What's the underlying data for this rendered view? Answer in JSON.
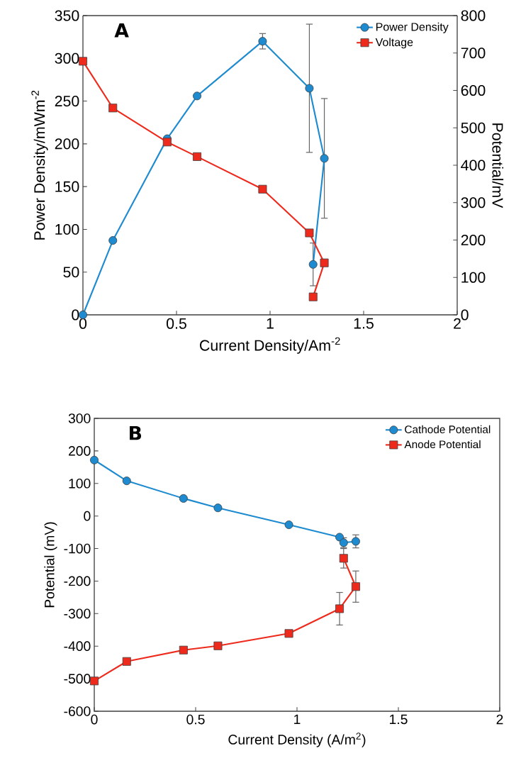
{
  "chart_data": [
    {
      "type": "line",
      "annotations": [
        "A"
      ],
      "xlabel": "Current Density/Am$^{-2}$",
      "ylabel": "Power Density/mWm$^{-2}$",
      "y2label": "Potential/mV",
      "xlim": [
        0,
        2
      ],
      "xticks": [
        0,
        0.5,
        1,
        1.5,
        2
      ],
      "ylim": [
        0,
        350
      ],
      "yticks": [
        0,
        50,
        100,
        150,
        200,
        250,
        300,
        350
      ],
      "y2lim": [
        0,
        800
      ],
      "y2ticks": [
        0,
        100,
        200,
        300,
        400,
        500,
        600,
        700,
        800
      ],
      "legend": "top right",
      "line_style": "solid",
      "grid": false,
      "series": [
        {
          "name": "Power Density",
          "color": "#1e8bd1",
          "marker": "circle",
          "x": [
            0,
            0.16,
            0.45,
            0.61,
            0.96,
            1.21,
            1.29,
            1.23
          ],
          "values": [
            0,
            87,
            206,
            256,
            320,
            265,
            183,
            59
          ],
          "errors": [
            null,
            null,
            null,
            null,
            9,
            75,
            70,
            25
          ]
        },
        {
          "name": "Voltage",
          "color": "#ee2a1c",
          "marker": "square",
          "axis": "y2",
          "x": [
            0,
            0.16,
            0.45,
            0.61,
            0.96,
            1.21,
            1.29,
            1.23
          ],
          "values": [
            678,
            553,
            462,
            423,
            336,
            219,
            139,
            48
          ]
        }
      ]
    },
    {
      "type": "line",
      "annotations": [
        "B"
      ],
      "xlabel": "Current Density (A/m$^{2}$)",
      "ylabel": "Potential (mV)",
      "xlim": [
        0,
        2
      ],
      "xticks": [
        0,
        0.5,
        1,
        1.5,
        2
      ],
      "ylim": [
        -600,
        300
      ],
      "yticks": [
        -600,
        -500,
        -400,
        -300,
        -200,
        -100,
        0,
        100,
        200,
        300
      ],
      "legend": "top right",
      "line_style": "solid",
      "grid": false,
      "series": [
        {
          "name": "Cathode Potential",
          "color": "#1e8bd1",
          "marker": "circle",
          "x": [
            0,
            0.16,
            0.44,
            0.61,
            0.96,
            1.21,
            1.23,
            1.29
          ],
          "values": [
            172,
            108,
            54,
            25,
            -27,
            -65,
            -82,
            -78
          ],
          "errors": [
            null,
            null,
            null,
            null,
            null,
            null,
            15,
            20
          ]
        },
        {
          "name": "Anode Potential",
          "color": "#ee2a1c",
          "marker": "square",
          "x": [
            0,
            0.16,
            0.44,
            0.61,
            0.96,
            1.21,
            1.29,
            1.23
          ],
          "values": [
            -507,
            -447,
            -412,
            -399,
            -361,
            -285,
            -217,
            -130
          ],
          "errors": [
            null,
            null,
            null,
            null,
            null,
            50,
            48,
            30
          ]
        }
      ]
    }
  ]
}
